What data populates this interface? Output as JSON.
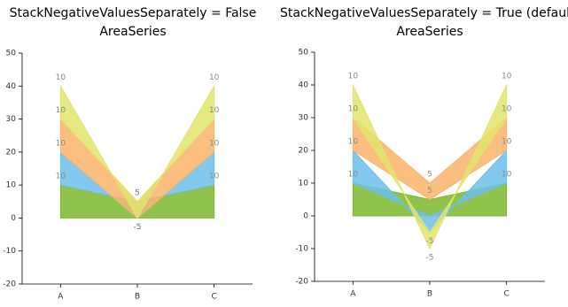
{
  "chart_data": [
    {
      "type": "area",
      "title": "StackNegativeValuesSeparately = False",
      "subtitle": "AreaSeries",
      "stack_negative_separately": false,
      "categories": [
        "A",
        "B",
        "C"
      ],
      "series": [
        {
          "color": "#7bb92f",
          "values": [
            10,
            5,
            10
          ]
        },
        {
          "color": "#6cc0ea",
          "values": [
            10,
            -5,
            10
          ]
        },
        {
          "color": "#f9b46a",
          "values": [
            10,
            5,
            10
          ]
        },
        {
          "color": "#e2e46c",
          "values": [
            10,
            -5,
            10
          ]
        }
      ],
      "ylim": [
        -20,
        50
      ],
      "yticks": [
        -20,
        -10,
        0,
        10,
        20,
        30,
        40,
        50
      ]
    },
    {
      "type": "area",
      "title": "StackNegativeValuesSeparately = True (default)",
      "subtitle": "AreaSeries",
      "stack_negative_separately": true,
      "categories": [
        "A",
        "B",
        "C"
      ],
      "series": [
        {
          "color": "#7bb92f",
          "values": [
            10,
            5,
            10
          ]
        },
        {
          "color": "#6cc0ea",
          "values": [
            10,
            -5,
            10
          ]
        },
        {
          "color": "#f9b46a",
          "values": [
            10,
            5,
            10
          ]
        },
        {
          "color": "#e2e46c",
          "values": [
            10,
            -5,
            10
          ]
        }
      ],
      "ylim": [
        -20,
        50
      ],
      "yticks": [
        -20,
        -10,
        0,
        10,
        20,
        30,
        40,
        50
      ]
    }
  ]
}
